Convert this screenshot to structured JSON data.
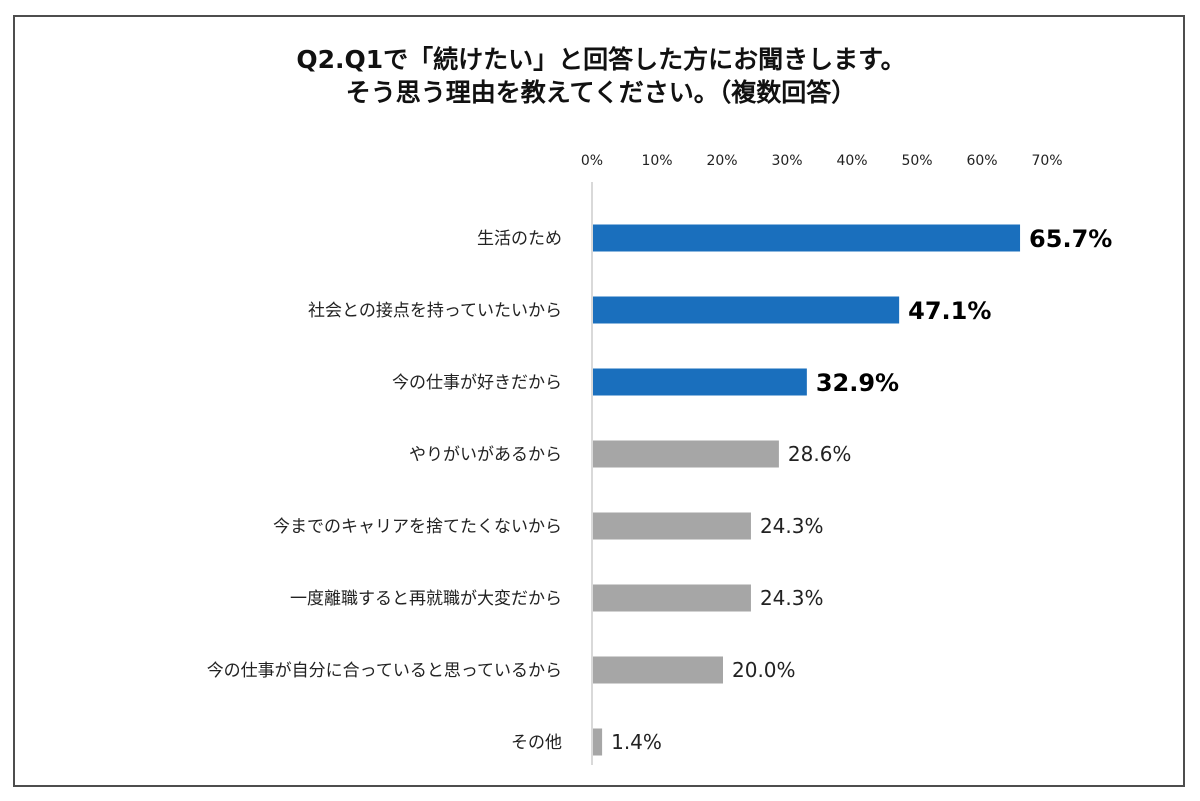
{
  "title_lines": [
    "Q2.Q1で「続けたい」と回答した方にお聞きします。",
    "そう思う理由を教えてください。（複数回答）"
  ],
  "chart_data": {
    "type": "bar",
    "orientation": "horizontal",
    "title": "Q2.Q1で「続けたい」と回答した方にお聞きします。そう思う理由を教えてください。（複数回答）",
    "categories": [
      "生活のため",
      "社会との接点を持っていたいから",
      "今の仕事が好きだから",
      "やりがいがあるから",
      "今までのキャリアを捨てたくないから",
      "一度離職すると再就職が大変だから",
      "今の仕事が自分に合っていると思っているから",
      "その他"
    ],
    "values": [
      65.7,
      47.1,
      32.9,
      28.6,
      24.3,
      24.3,
      20.0,
      1.4
    ],
    "value_labels": [
      "65.7%",
      "47.1%",
      "32.9%",
      "28.6%",
      "24.3%",
      "24.3%",
      "20.0%",
      "1.4%"
    ],
    "highlight_top": 3,
    "xlim": [
      0,
      70
    ],
    "x_ticks": [
      "0%",
      "10%",
      "20%",
      "30%",
      "40%",
      "50%",
      "60%",
      "70%"
    ],
    "axis_position": "top",
    "grid": false,
    "legend": "none",
    "colors": {
      "highlight": "#1a6fbd",
      "normal": "#a6a6a6",
      "axis": "#d9d9d9"
    }
  }
}
